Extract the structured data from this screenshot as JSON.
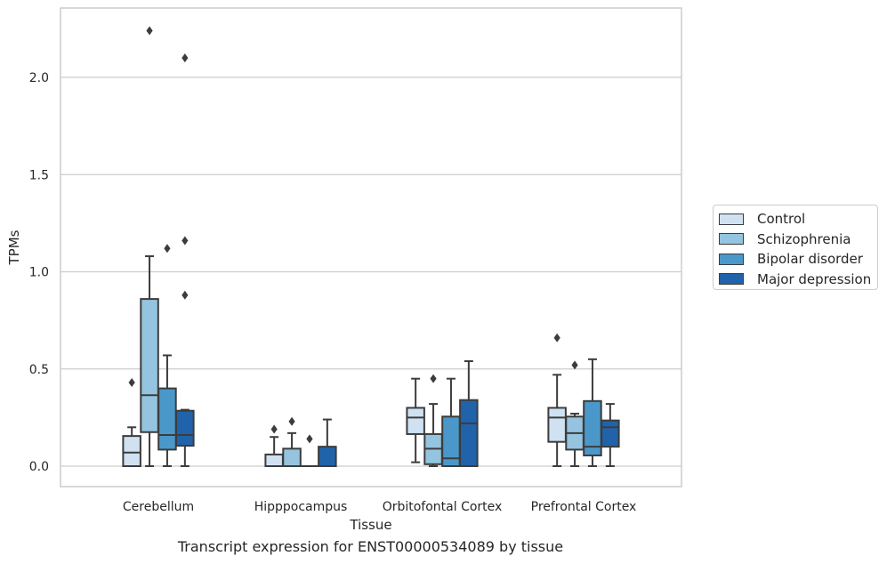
{
  "caption": "Transcript expression for ENST00000534089 by tissue",
  "colors": {
    "Control": "#d0e1f2",
    "Schizophrenia": "#94c4df",
    "Bipolar disorder": "#4a98c9",
    "Major depression": "#2163aa",
    "line": "#3c3c3c",
    "grid": "#cccccc"
  },
  "chart_data": {
    "type": "box",
    "xlabel": "Tissue",
    "ylabel": "TPMs",
    "ylim": [
      -0.11,
      2.37
    ],
    "yticks": [
      0.0,
      0.5,
      1.0,
      1.5,
      2.0
    ],
    "ytick_labels": [
      "0.0",
      "0.5",
      "1.0",
      "1.5",
      "2.0"
    ],
    "grid": "horizontal",
    "legend_position": "right",
    "categories": [
      "Cerebellum",
      "Hipppocampus",
      "Orbitofontal Cortex",
      "Prefrontal Cortex"
    ],
    "series": [
      {
        "name": "Control",
        "boxes": [
          {
            "q1": 0.0,
            "median": 0.07,
            "q3": 0.155,
            "whislo": 0.0,
            "whishi": 0.2,
            "fliers": [
              0.43
            ]
          },
          {
            "q1": 0.0,
            "median": 0.0,
            "q3": 0.06,
            "whislo": 0.0,
            "whishi": 0.15,
            "fliers": [
              0.19
            ]
          },
          {
            "q1": 0.165,
            "median": 0.25,
            "q3": 0.3,
            "whislo": 0.02,
            "whishi": 0.45,
            "fliers": []
          },
          {
            "q1": 0.125,
            "median": 0.25,
            "q3": 0.3,
            "whislo": 0.0,
            "whishi": 0.47,
            "fliers": [
              0.66
            ]
          }
        ]
      },
      {
        "name": "Schizophrenia",
        "boxes": [
          {
            "q1": 0.175,
            "median": 0.365,
            "q3": 0.86,
            "whislo": 0.0,
            "whishi": 1.08,
            "fliers": [
              2.24
            ]
          },
          {
            "q1": 0.0,
            "median": 0.0,
            "q3": 0.09,
            "whislo": 0.0,
            "whishi": 0.17,
            "fliers": [
              0.23
            ]
          },
          {
            "q1": 0.01,
            "median": 0.09,
            "q3": 0.165,
            "whislo": 0.0,
            "whishi": 0.32,
            "fliers": [
              0.45
            ]
          },
          {
            "q1": 0.085,
            "median": 0.17,
            "q3": 0.255,
            "whislo": 0.0,
            "whishi": 0.27,
            "fliers": [
              0.52
            ]
          }
        ]
      },
      {
        "name": "Bipolar disorder",
        "boxes": [
          {
            "q1": 0.085,
            "median": 0.16,
            "q3": 0.4,
            "whislo": 0.0,
            "whishi": 0.57,
            "fliers": [
              1.12
            ]
          },
          {
            "q1": 0.0,
            "median": 0.0,
            "q3": 0.0,
            "whislo": 0.0,
            "whishi": 0.0,
            "fliers": [
              0.14
            ]
          },
          {
            "q1": 0.0,
            "median": 0.04,
            "q3": 0.255,
            "whislo": 0.0,
            "whishi": 0.45,
            "fliers": []
          },
          {
            "q1": 0.055,
            "median": 0.1,
            "q3": 0.335,
            "whislo": 0.0,
            "whishi": 0.55,
            "fliers": []
          }
        ]
      },
      {
        "name": "Major depression",
        "boxes": [
          {
            "q1": 0.105,
            "median": 0.16,
            "q3": 0.285,
            "whislo": 0.0,
            "whishi": 0.29,
            "fliers": [
              0.88,
              1.16,
              2.1
            ]
          },
          {
            "q1": 0.0,
            "median": 0.0,
            "q3": 0.1,
            "whislo": 0.0,
            "whishi": 0.24,
            "fliers": []
          },
          {
            "q1": 0.0,
            "median": 0.22,
            "q3": 0.34,
            "whislo": 0.0,
            "whishi": 0.54,
            "fliers": []
          },
          {
            "q1": 0.1,
            "median": 0.2,
            "q3": 0.235,
            "whislo": 0.0,
            "whishi": 0.32,
            "fliers": []
          }
        ]
      }
    ]
  }
}
